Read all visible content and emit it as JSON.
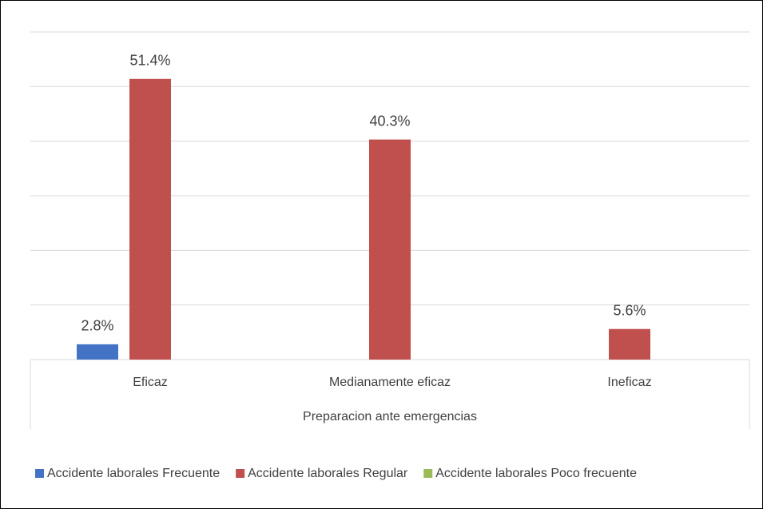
{
  "chart_data": {
    "type": "bar",
    "x_label": "Preparacion ante emergencias",
    "categories": [
      "Eficaz",
      "Medianamente eficaz",
      "Ineficaz"
    ],
    "series": [
      {
        "name": "Accidente laborales Frecuente",
        "color": "#4472c4",
        "values": [
          2.8,
          null,
          null
        ],
        "value_labels": [
          "2.8%",
          null,
          null
        ]
      },
      {
        "name": "Accidente laborales Regular",
        "color": "#c0504d",
        "values": [
          51.4,
          40.3,
          5.6
        ],
        "value_labels": [
          "51.4%",
          "40.3%",
          "5.6%"
        ]
      },
      {
        "name": "Accidente laborales Poco frecuente",
        "color": "#9bbb59",
        "values": [
          null,
          null,
          null
        ],
        "value_labels": [
          null,
          null,
          null
        ]
      }
    ],
    "ylim": [
      0,
      60
    ],
    "yticks": [
      0,
      10,
      20,
      30,
      40,
      50,
      60
    ],
    "grid": true,
    "legend": "bottom"
  }
}
